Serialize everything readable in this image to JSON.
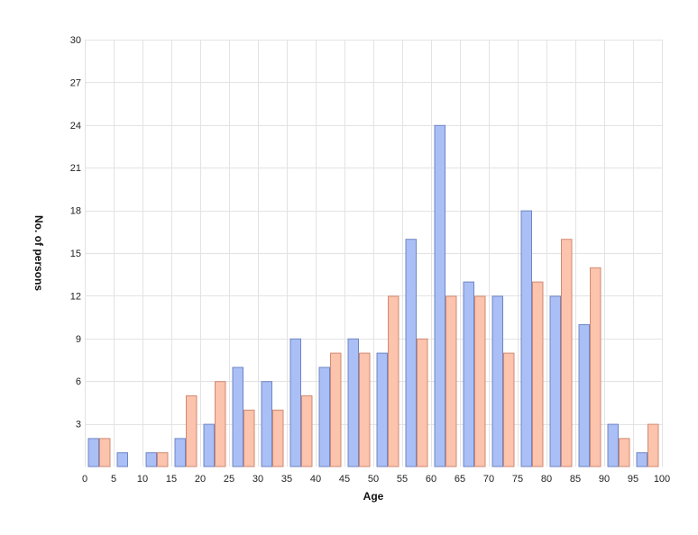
{
  "chart_data": {
    "type": "bar",
    "title": "",
    "xlabel": "Age",
    "ylabel": "No. of persons",
    "ylim": [
      0,
      30
    ],
    "yticks": [
      3,
      6,
      9,
      12,
      15,
      18,
      21,
      24,
      27,
      30
    ],
    "xlim": [
      0,
      100
    ],
    "xticks": [
      0,
      5,
      10,
      15,
      20,
      25,
      30,
      35,
      40,
      45,
      50,
      55,
      60,
      65,
      70,
      75,
      80,
      85,
      90,
      95,
      100
    ],
    "grid": true,
    "legend": "none",
    "categories": [
      "0-5",
      "5-10",
      "10-15",
      "15-20",
      "20-25",
      "25-30",
      "30-35",
      "35-40",
      "40-45",
      "45-50",
      "50-55",
      "55-60",
      "60-65",
      "65-70",
      "70-75",
      "75-80",
      "80-85",
      "85-90",
      "90-95",
      "95-100"
    ],
    "series": [
      {
        "color": "#aabff5",
        "stroke": "#6f86c4",
        "values": [
          2,
          1,
          1,
          2,
          3,
          7,
          6,
          9,
          7,
          9,
          8,
          16,
          24,
          13,
          12,
          18,
          12,
          10,
          3,
          1
        ]
      },
      {
        "color": "#fcc3ad",
        "stroke": "#d08a72",
        "values": [
          2,
          0,
          1,
          5,
          6,
          4,
          4,
          5,
          8,
          8,
          12,
          9,
          12,
          12,
          8,
          13,
          16,
          14,
          2,
          3
        ]
      }
    ]
  }
}
